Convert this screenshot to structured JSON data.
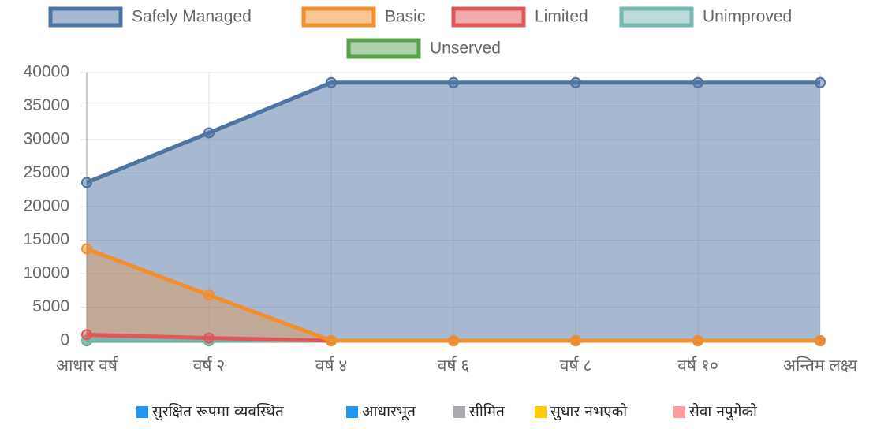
{
  "chart_data": {
    "type": "line",
    "categories": [
      "आधार वर्ष",
      "वर्ष २",
      "वर्ष ४",
      "वर्ष ६",
      "वर्ष ८",
      "वर्ष १०",
      "अन्तिम लक्ष्य"
    ],
    "series": [
      {
        "name": "Safely Managed",
        "color": "#4e74a3",
        "values": [
          23600,
          31000,
          38500,
          38500,
          38500,
          38500,
          38500
        ]
      },
      {
        "name": "Basic",
        "color": "#f28e2b",
        "values": [
          13700,
          6800,
          0,
          0,
          0,
          0,
          0
        ]
      },
      {
        "name": "Limited",
        "color": "#e15759",
        "values": [
          900,
          400,
          0,
          0,
          0,
          0,
          0
        ]
      },
      {
        "name": "Unimproved",
        "color": "#76b7b2",
        "values": [
          100,
          100,
          0,
          0,
          0,
          0,
          0
        ]
      },
      {
        "name": "Unserved",
        "color": "#59a14f",
        "values": [
          0,
          0,
          0,
          0,
          0,
          0,
          0
        ]
      }
    ],
    "ylim": [
      0,
      40000
    ],
    "yticks": [
      0,
      5000,
      10000,
      15000,
      20000,
      25000,
      30000,
      35000,
      40000
    ],
    "grid": true,
    "secondary_legend": [
      {
        "name": "सुरक्षित रूपमा व्यवस्थित",
        "color": "#2196f3"
      },
      {
        "name": "आधारभूत",
        "color": "#2196f3"
      },
      {
        "name": "सीमित",
        "color": "#a9a9b0"
      },
      {
        "name": "सुधार नभएको",
        "color": "#ffcc00"
      },
      {
        "name": "सेवा नपुगेको",
        "color": "#ff9b9b"
      }
    ]
  }
}
